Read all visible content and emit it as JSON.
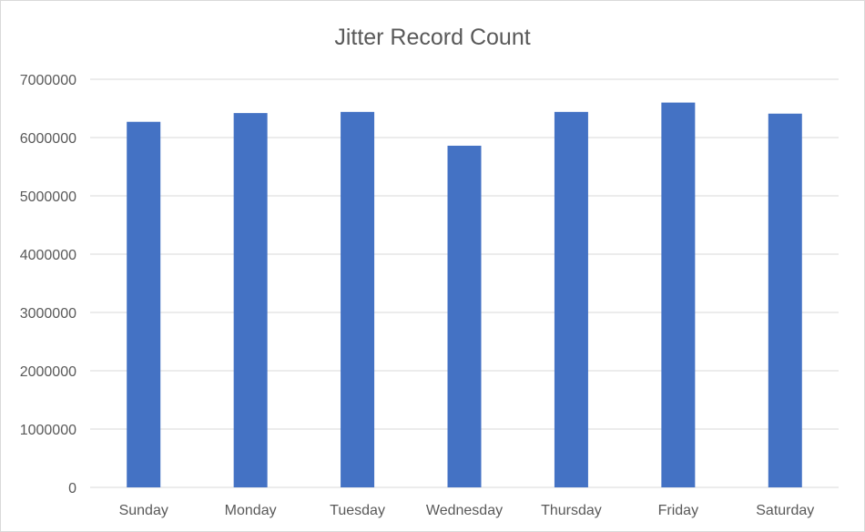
{
  "chart_data": {
    "type": "bar",
    "title": "Jitter Record Count",
    "xlabel": "",
    "ylabel": "",
    "categories": [
      "Sunday",
      "Monday",
      "Tuesday",
      "Wednesday",
      "Thursday",
      "Friday",
      "Saturday"
    ],
    "values": [
      6270000,
      6420000,
      6440000,
      5860000,
      6440000,
      6600000,
      6410000
    ],
    "ylim": [
      0,
      7000000
    ],
    "y_ticks": [
      "0",
      "1000000",
      "2000000",
      "3000000",
      "4000000",
      "5000000",
      "6000000",
      "7000000"
    ],
    "grid": true,
    "legend": "none",
    "bar_color": "#4472c4",
    "grid_color": "#d9d9d9",
    "text_color": "#595959"
  }
}
